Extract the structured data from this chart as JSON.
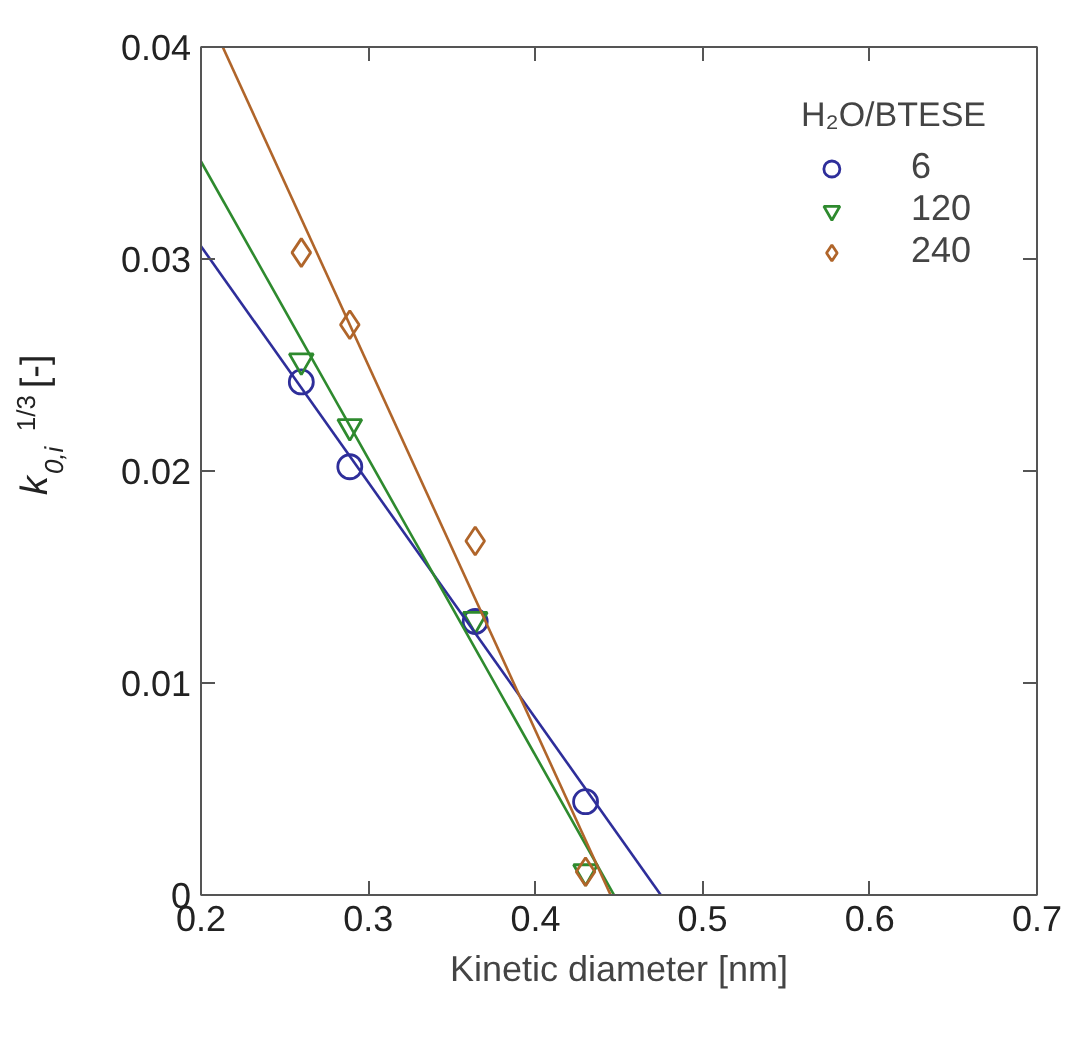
{
  "chart_data": {
    "type": "scatter",
    "xlabel": "Kinetic diameter [nm]",
    "ylabel": "k$_{0,i}$$^{1/3}$ [-]",
    "legend_title": "H₂O/BTESE",
    "legend": "top right",
    "grid": false,
    "xlim": [
      0.2,
      0.7
    ],
    "ylim": [
      0,
      0.04
    ],
    "xticks": [
      0.2,
      0.3,
      0.4,
      0.5,
      0.6,
      0.7
    ],
    "yticks": [
      0,
      0.01,
      0.02,
      0.03,
      0.04
    ],
    "series": [
      {
        "name": "6",
        "color": "#2e2e9a",
        "marker": "circle",
        "x": [
          0.26,
          0.289,
          0.364,
          0.43
        ],
        "values": [
          0.0242,
          0.0202,
          0.0129,
          0.0044
        ]
      },
      {
        "name": "120",
        "color": "#2e8a2e",
        "marker": "triangle",
        "x": [
          0.26,
          0.289,
          0.364,
          0.43
        ],
        "values": [
          0.0252,
          0.0221,
          0.013,
          0.0011
        ]
      },
      {
        "name": "240",
        "color": "#b0652a",
        "marker": "diamond",
        "x": [
          0.26,
          0.289,
          0.364,
          0.43
        ],
        "values": [
          0.0303,
          0.0269,
          0.0167,
          0.0011
        ]
      },
      {
        "type": "line",
        "color": "#2e2e9a",
        "marker": "none",
        "x": [
          0.2,
          0.475
        ],
        "values": [
          0.0306,
          0
        ]
      },
      {
        "type": "line",
        "color": "#2e8a2e",
        "marker": "none",
        "x": [
          0.2,
          0.447
        ],
        "values": [
          0.0346,
          0
        ]
      },
      {
        "type": "line",
        "color": "#b0652a",
        "marker": "none",
        "x": [
          0.213,
          0.445
        ],
        "values": [
          0.04,
          0
        ]
      }
    ]
  }
}
